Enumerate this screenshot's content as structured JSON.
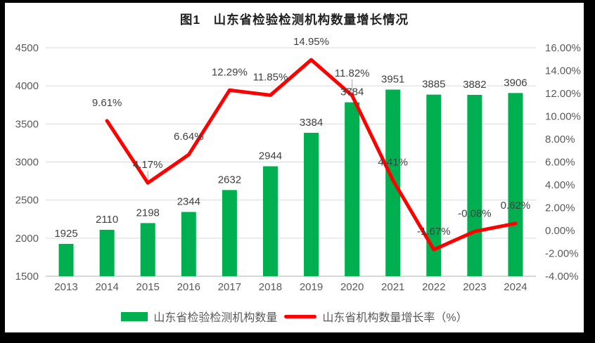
{
  "title": "图1　山东省检验检测机构数量增长情况",
  "colors": {
    "bar": "#00B050",
    "line": "#FF0000",
    "grid": "#D9D9D9",
    "axis_line": "#BFBFBF",
    "leader": "#A6A6A6",
    "tick_text": "#595959",
    "data_label": "#404040",
    "title_text": "#1f1f1f",
    "frame": "#000000",
    "panel": "#FFFFFF"
  },
  "chart_data": {
    "type": "combo-bar-line",
    "title": "图1　山东省检验检测机构数量增长情况",
    "categories": [
      "2013",
      "2014",
      "2015",
      "2016",
      "2017",
      "2018",
      "2019",
      "2020",
      "2021",
      "2022",
      "2023",
      "2024"
    ],
    "series": [
      {
        "name": "山东省检验检测机构数量",
        "type": "bar",
        "axis": "left",
        "color": "#00B050",
        "values": [
          1925,
          2110,
          2198,
          2344,
          2632,
          2944,
          3384,
          3784,
          3951,
          3885,
          3882,
          3906
        ]
      },
      {
        "name": "山东省机构数量增长率（%）",
        "type": "line",
        "axis": "right",
        "color": "#FF0000",
        "values": [
          null,
          9.61,
          4.17,
          6.64,
          12.29,
          11.85,
          14.95,
          11.82,
          4.41,
          -1.67,
          -0.08,
          0.62
        ],
        "labels": [
          null,
          "9.61%",
          "4.17%",
          "6.64%",
          "12.29%",
          "11.85%",
          "14.95%",
          "11.82%",
          "4.41%",
          "-1.67%",
          "-0.08%",
          "0.62%"
        ]
      }
    ],
    "left_axis": {
      "min": 1500,
      "max": 4500,
      "step": 500,
      "ticks": [
        "1500",
        "2000",
        "2500",
        "3000",
        "3500",
        "4000",
        "4500"
      ]
    },
    "right_axis": {
      "min": -4,
      "max": 16,
      "step": 2,
      "ticks": [
        "16.00%",
        "14.00%",
        "12.00%",
        "10.00%",
        "8.00%",
        "6.00%",
        "4.00%",
        "2.00%",
        "0.00%",
        "-2.00%",
        "-4.00%"
      ]
    },
    "grid": true,
    "legend_position": "bottom"
  }
}
